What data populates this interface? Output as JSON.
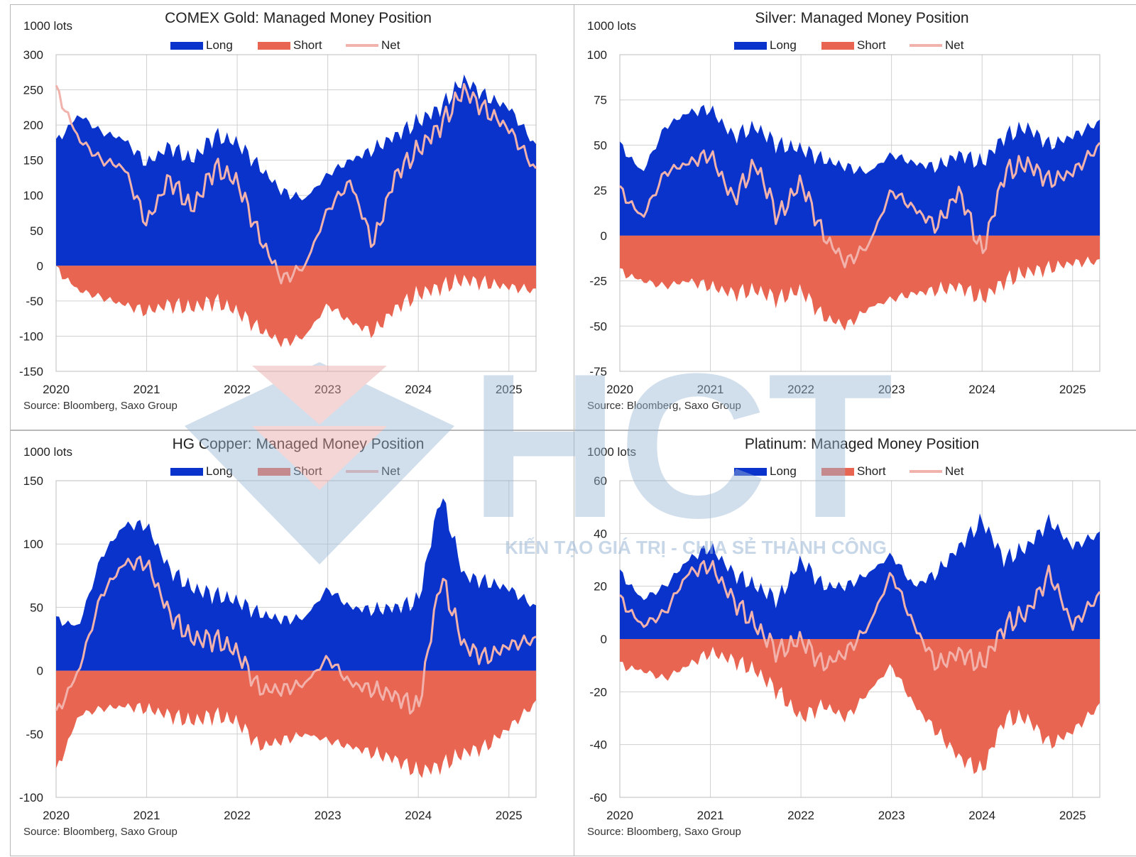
{
  "colors": {
    "long": "#0a33cc",
    "short": "#e86552",
    "net": "#f2b2ac",
    "grid": "#d0d0d0",
    "axis": "#222222",
    "watermark_blue": "#9ab7d6",
    "watermark_red": "#e8a6a6"
  },
  "watermark": {
    "logo_letters": "HCT",
    "tagline": "KIẾN TẠO GIÁ TRỊ - CHIA SẺ THÀNH CÔNG"
  },
  "chart_data": [
    {
      "type": "area",
      "title": "COMEX Gold: Managed Money Position",
      "ylabel": "1000 lots",
      "source": "Source: Bloomberg, Saxo Group",
      "legend": [
        "Long",
        "Short",
        "Net"
      ],
      "xlim": [
        2020,
        2025.3
      ],
      "ylim": [
        -150,
        300
      ],
      "xticks": [
        "2020",
        "2021",
        "2022",
        "2023",
        "2024",
        "2025"
      ],
      "yticks": [
        "300",
        "250",
        "200",
        "150",
        "100",
        "50",
        "0",
        "-50",
        "-100",
        "-150"
      ],
      "x": [
        2020.0,
        2020.25,
        2020.5,
        2020.75,
        2021.0,
        2021.25,
        2021.5,
        2021.75,
        2022.0,
        2022.25,
        2022.5,
        2022.75,
        2023.0,
        2023.25,
        2023.5,
        2023.75,
        2024.0,
        2024.25,
        2024.5,
        2024.75,
        2025.0,
        2025.3
      ],
      "series": [
        {
          "name": "Long",
          "values": [
            175,
            215,
            190,
            180,
            145,
            170,
            150,
            185,
            175,
            140,
            105,
            95,
            130,
            150,
            165,
            185,
            205,
            225,
            265,
            240,
            225,
            170
          ]
        },
        {
          "name": "Short",
          "values": [
            -5,
            -35,
            -45,
            -55,
            -65,
            -55,
            -60,
            -50,
            -65,
            -90,
            -110,
            -100,
            -55,
            -80,
            -95,
            -60,
            -40,
            -30,
            -20,
            -25,
            -30,
            -35
          ]
        },
        {
          "name": "Net",
          "values": [
            250,
            180,
            150,
            140,
            60,
            125,
            80,
            140,
            120,
            40,
            -20,
            0,
            80,
            120,
            30,
            130,
            165,
            200,
            250,
            220,
            195,
            135
          ]
        }
      ]
    },
    {
      "type": "area",
      "title": "Silver: Managed Money Position",
      "ylabel": "1000 lots",
      "source": "Source: Bloomberg, Saxo Group",
      "legend": [
        "Long",
        "Short",
        "Net"
      ],
      "xlim": [
        2020,
        2025.3
      ],
      "ylim": [
        -75,
        100
      ],
      "xticks": [
        "2020",
        "2021",
        "2022",
        "2023",
        "2024",
        "2025"
      ],
      "yticks": [
        "100",
        "75",
        "50",
        "25",
        "0",
        "-25",
        "-50",
        "-75"
      ],
      "x": [
        2020.0,
        2020.25,
        2020.5,
        2020.75,
        2021.0,
        2021.25,
        2021.5,
        2021.75,
        2022.0,
        2022.25,
        2022.5,
        2022.75,
        2023.0,
        2023.25,
        2023.5,
        2023.75,
        2024.0,
        2024.25,
        2024.5,
        2024.75,
        2025.0,
        2025.3
      ],
      "series": [
        {
          "name": "Long",
          "values": [
            50,
            35,
            60,
            68,
            70,
            55,
            60,
            50,
            48,
            42,
            38,
            35,
            45,
            40,
            38,
            45,
            40,
            55,
            60,
            50,
            55,
            63
          ]
        },
        {
          "name": "Short",
          "values": [
            -20,
            -25,
            -28,
            -25,
            -28,
            -32,
            -30,
            -35,
            -30,
            -45,
            -50,
            -40,
            -35,
            -32,
            -30,
            -28,
            -35,
            -25,
            -20,
            -18,
            -15,
            -14
          ]
        },
        {
          "name": "Net",
          "values": [
            25,
            10,
            35,
            40,
            45,
            20,
            40,
            10,
            30,
            0,
            -15,
            -5,
            25,
            15,
            5,
            25,
            -10,
            35,
            40,
            30,
            35,
            50
          ]
        }
      ]
    },
    {
      "type": "area",
      "title": "HG Copper: Managed Money Position",
      "ylabel": "1000 lots",
      "source": "Source: Bloomberg, Saxo Group",
      "legend": [
        "Long",
        "Short",
        "Net"
      ],
      "xlim": [
        2020,
        2025.3
      ],
      "ylim": [
        -100,
        150
      ],
      "xticks": [
        "2020",
        "2021",
        "2022",
        "2023",
        "2024",
        "2025"
      ],
      "yticks": [
        "150",
        "100",
        "50",
        "0",
        "-50",
        "-100"
      ],
      "x": [
        2020.0,
        2020.25,
        2020.5,
        2020.75,
        2021.0,
        2021.25,
        2021.5,
        2021.75,
        2022.0,
        2022.25,
        2022.5,
        2022.75,
        2023.0,
        2023.25,
        2023.5,
        2023.75,
        2024.0,
        2024.25,
        2024.5,
        2024.75,
        2025.0,
        2025.3
      ],
      "series": [
        {
          "name": "Long",
          "values": [
            40,
            35,
            90,
            115,
            115,
            80,
            65,
            60,
            55,
            45,
            40,
            42,
            65,
            50,
            48,
            50,
            55,
            140,
            75,
            70,
            65,
            50
          ]
        },
        {
          "name": "Short",
          "values": [
            -80,
            -35,
            -30,
            -28,
            -30,
            -35,
            -40,
            -35,
            -40,
            -60,
            -55,
            -50,
            -55,
            -60,
            -65,
            -70,
            -80,
            -75,
            -65,
            -60,
            -45,
            -25
          ]
        },
        {
          "name": "Net",
          "values": [
            -35,
            0,
            60,
            85,
            85,
            45,
            25,
            25,
            15,
            -15,
            -15,
            -10,
            10,
            -10,
            -15,
            -20,
            -30,
            75,
            20,
            10,
            20,
            25
          ]
        }
      ]
    },
    {
      "type": "area",
      "title": "Platinum: Managed Money Position",
      "ylabel": "1000 lots",
      "source": "Source: Bloomberg, Saxo Group",
      "legend": [
        "Long",
        "Short",
        "Net"
      ],
      "xlim": [
        2020,
        2025.3
      ],
      "ylim": [
        -60,
        60
      ],
      "xticks": [
        "2020",
        "2021",
        "2022",
        "2023",
        "2024",
        "2025"
      ],
      "yticks": [
        "60",
        "40",
        "20",
        "0",
        "-20",
        "-40",
        "-60"
      ],
      "x": [
        2020.0,
        2020.25,
        2020.5,
        2020.75,
        2021.0,
        2021.25,
        2021.5,
        2021.75,
        2022.0,
        2022.25,
        2022.5,
        2022.75,
        2023.0,
        2023.25,
        2023.5,
        2023.75,
        2024.0,
        2024.25,
        2024.5,
        2024.75,
        2025.0,
        2025.3
      ],
      "series": [
        {
          "name": "Long",
          "values": [
            25,
            15,
            20,
            30,
            35,
            25,
            20,
            15,
            30,
            20,
            20,
            25,
            32,
            20,
            25,
            35,
            45,
            30,
            35,
            45,
            35,
            40
          ]
        },
        {
          "name": "Short",
          "values": [
            -10,
            -12,
            -15,
            -10,
            -5,
            -8,
            -12,
            -20,
            -30,
            -25,
            -30,
            -20,
            -10,
            -25,
            -35,
            -45,
            -50,
            -30,
            -30,
            -40,
            -35,
            -25
          ]
        },
        {
          "name": "Net",
          "values": [
            15,
            5,
            10,
            25,
            28,
            15,
            5,
            -5,
            0,
            -10,
            -5,
            5,
            25,
            5,
            -10,
            -5,
            -10,
            5,
            10,
            25,
            5,
            17
          ]
        }
      ]
    }
  ]
}
